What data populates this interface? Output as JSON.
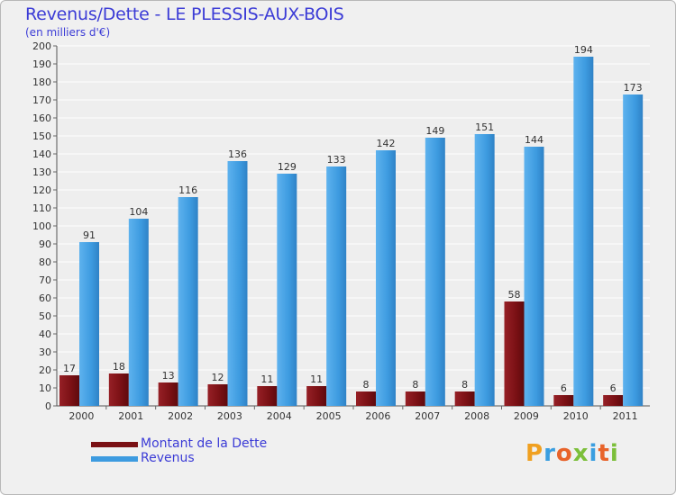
{
  "title": "Revenus/Dette - LE PLESSIS-AUX-BOIS",
  "subtitle": "(en milliers d'€)",
  "logo": {
    "text": "Proxiti",
    "letters": [
      "P",
      "r",
      "o",
      "x",
      "i",
      "t",
      "i"
    ],
    "colors": [
      "#f0a020",
      "#3a9ee0",
      "#e8632a",
      "#7cbf3a",
      "#3a9ee0",
      "#e8632a",
      "#7cbf3a"
    ]
  },
  "colors": {
    "dette": "#7a1014",
    "revenus": "#3d9be0",
    "title": "#3b3bd6",
    "background": "#f0f0f0"
  },
  "chart_data": {
    "type": "bar",
    "title": "Revenus/Dette - LE PLESSIS-AUX-BOIS",
    "ylabel": "(en milliers d'€)",
    "xlabel": "",
    "categories": [
      "2000",
      "2001",
      "2002",
      "2003",
      "2004",
      "2005",
      "2006",
      "2007",
      "2008",
      "2009",
      "2010",
      "2011"
    ],
    "series": [
      {
        "name": "Montant de la Dette",
        "values": [
          17,
          18,
          13,
          12,
          11,
          11,
          8,
          8,
          8,
          58,
          6,
          6
        ]
      },
      {
        "name": "Revenus",
        "values": [
          91,
          104,
          116,
          136,
          129,
          133,
          142,
          149,
          151,
          144,
          194,
          173
        ]
      }
    ],
    "ylim": [
      0,
      200
    ],
    "ytick_step": 10,
    "grid": true,
    "legend_position": "bottom-left"
  }
}
